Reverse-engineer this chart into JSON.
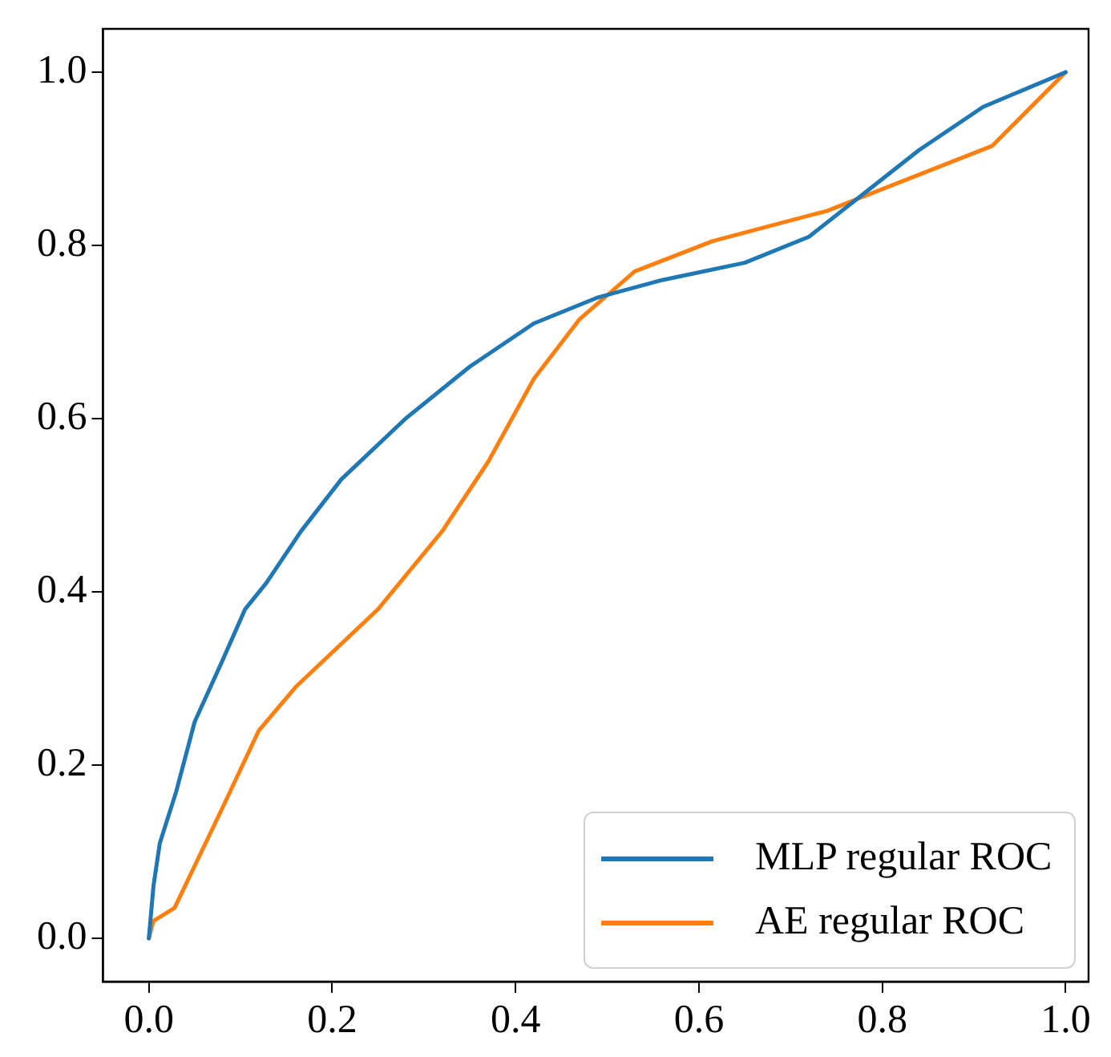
{
  "chart_data": {
    "type": "line",
    "xlim": [
      -0.05,
      1.025
    ],
    "ylim": [
      -0.05,
      1.05
    ],
    "xticks": [
      {
        "value": 0,
        "label": "0.0"
      },
      {
        "value": 0.2,
        "label": "0.2"
      },
      {
        "value": 0.4,
        "label": "0.4"
      },
      {
        "value": 0.6,
        "label": "0.6"
      },
      {
        "value": 0.8,
        "label": "0.8"
      },
      {
        "value": 1,
        "label": "1.0"
      }
    ],
    "yticks": [
      {
        "value": 0,
        "label": "0.0"
      },
      {
        "value": 0.2,
        "label": "0.2"
      },
      {
        "value": 0.4,
        "label": "0.4"
      },
      {
        "value": 0.6,
        "label": "0.6"
      },
      {
        "value": 0.8,
        "label": "0.8"
      },
      {
        "value": 1,
        "label": "1.0"
      }
    ],
    "grid": false,
    "legend": "bottom right",
    "marker": "none",
    "line_style": "solid",
    "series": [
      {
        "name": "MLP regular ROC",
        "color": "#1f77b4",
        "x": [
          0,
          0.005,
          0.012,
          0.03,
          0.05,
          0.08,
          0.105,
          0.128,
          0.166,
          0.21,
          0.28,
          0.35,
          0.42,
          0.49,
          0.56,
          0.65,
          0.72,
          0.78,
          0.84,
          0.91,
          1
        ],
        "values": [
          0,
          0.06,
          0.11,
          0.17,
          0.25,
          0.32,
          0.38,
          0.41,
          0.47,
          0.53,
          0.6,
          0.66,
          0.71,
          0.74,
          0.76,
          0.78,
          0.81,
          0.86,
          0.91,
          0.96,
          1
        ]
      },
      {
        "name": "AE regular ROC",
        "color": "#ff7f0e",
        "x": [
          0,
          0.005,
          0.028,
          0.08,
          0.12,
          0.16,
          0.25,
          0.32,
          0.37,
          0.42,
          0.47,
          0.53,
          0.615,
          0.74,
          0.92,
          1
        ],
        "values": [
          0,
          0.02,
          0.035,
          0.15,
          0.24,
          0.29,
          0.38,
          0.47,
          0.55,
          0.646,
          0.715,
          0.77,
          0.805,
          0.84,
          0.915,
          1
        ]
      }
    ]
  }
}
